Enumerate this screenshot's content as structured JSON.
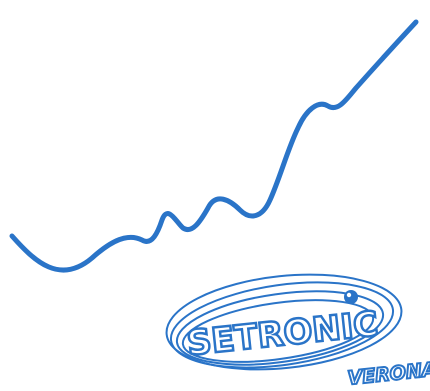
{
  "colors": {
    "brand_blue": "#2a74c8",
    "white": "#ffffff"
  },
  "logo": {
    "brand": "SETRONIC",
    "city": "VERONA"
  }
}
